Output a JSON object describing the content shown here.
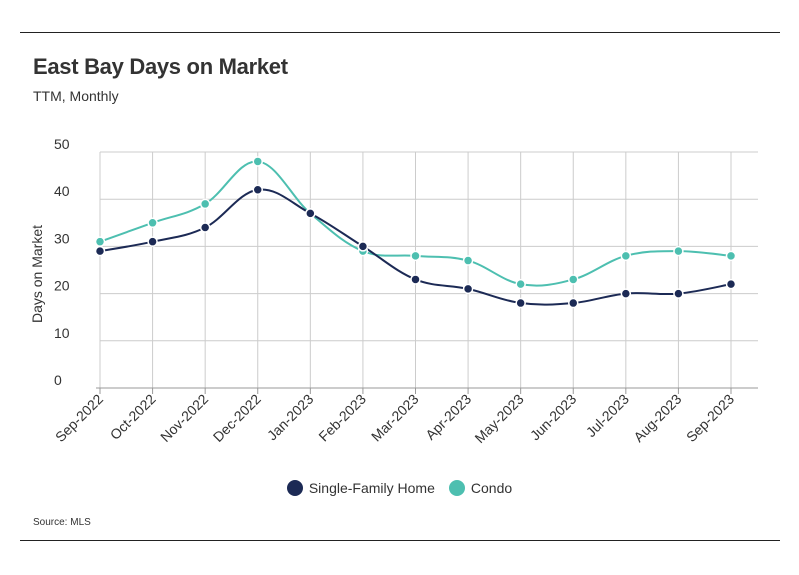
{
  "header": {
    "title": "East Bay Days on Market",
    "subtitle": "TTM, Monthly"
  },
  "footer": {
    "source": "Source:  MLS"
  },
  "colors": {
    "single_family": "#1c2a55",
    "condo": "#4dbfb0",
    "grid": "#cccccc",
    "axis": "#999999"
  },
  "chart_data": {
    "type": "line",
    "title": "East Bay Days on Market",
    "subtitle": "TTM, Monthly",
    "xlabel": "",
    "ylabel": "Days on Market",
    "ylim": [
      0,
      50
    ],
    "yticks": [
      0,
      10,
      20,
      30,
      40,
      50
    ],
    "grid": true,
    "legend": "bottom-center",
    "categories": [
      "Sep-2022",
      "Oct-2022",
      "Nov-2022",
      "Dec-2022",
      "Jan-2023",
      "Feb-2023",
      "Mar-2023",
      "Apr-2023",
      "May-2023",
      "Jun-2023",
      "Jul-2023",
      "Aug-2023",
      "Sep-2023"
    ],
    "series": [
      {
        "name": "Single-Family Home",
        "color": "#1c2a55",
        "values": [
          29,
          31,
          34,
          42,
          37,
          30,
          23,
          21,
          18,
          18,
          20,
          20,
          22
        ]
      },
      {
        "name": "Condo",
        "color": "#4dbfb0",
        "values": [
          31,
          35,
          39,
          48,
          37,
          29,
          28,
          27,
          22,
          23,
          28,
          29,
          28
        ]
      }
    ]
  }
}
